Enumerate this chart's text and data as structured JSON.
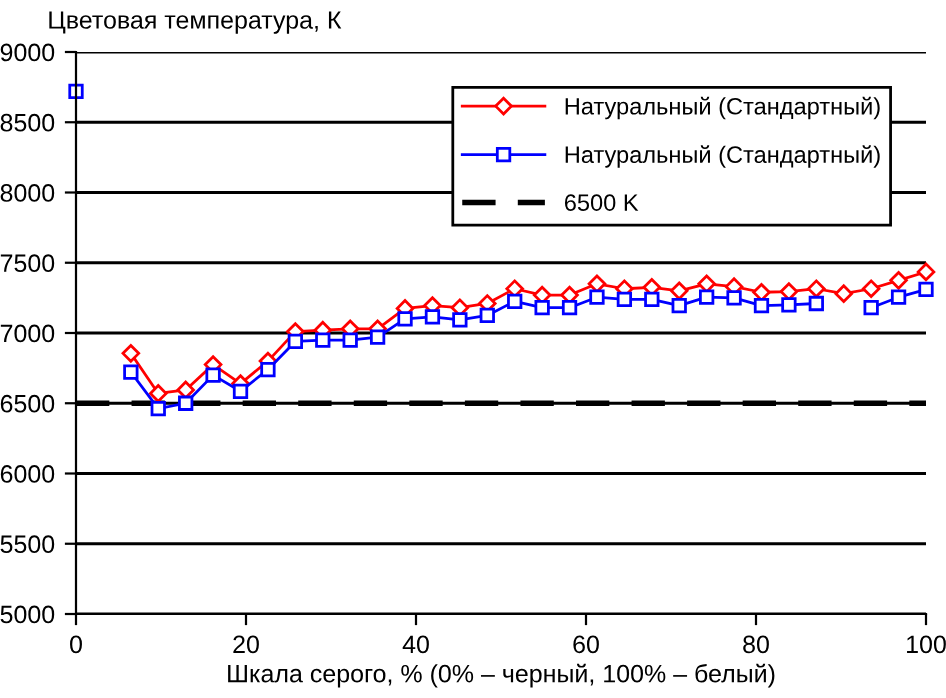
{
  "chart_data": {
    "type": "line",
    "ylabel": "Цветовая температура, К",
    "xlabel": "Шкала серого, % (0% – черный, 100% – белый)",
    "x": [
      0,
      3.226,
      6.452,
      9.677,
      12.903,
      16.129,
      19.355,
      22.581,
      25.806,
      29.032,
      32.258,
      35.484,
      38.71,
      41.935,
      45.161,
      48.387,
      51.613,
      54.839,
      58.065,
      61.29,
      64.516,
      67.742,
      70.968,
      74.194,
      77.419,
      80.645,
      83.871,
      87.097,
      90.323,
      93.548,
      96.774,
      100
    ],
    "series": [
      {
        "name": "Натуральный (Стандартный)",
        "color": "#ff0000",
        "marker": "diamond",
        "values": [
          null,
          null,
          6855,
          6570,
          6595,
          6775,
          6640,
          6800,
          7010,
          7020,
          7030,
          7030,
          7175,
          7195,
          7180,
          7210,
          7315,
          7270,
          7270,
          7350,
          7315,
          7325,
          7300,
          7350,
          7330,
          7290,
          7295,
          7315,
          7280,
          7315,
          7375,
          7435
        ]
      },
      {
        "name": "Натуральный (Стандартный)",
        "color": "#0000ff",
        "marker": "square",
        "values": [
          8720,
          null,
          6722,
          6462,
          6500,
          6700,
          6585,
          6740,
          6940,
          6950,
          6950,
          6970,
          7100,
          7115,
          7093,
          7125,
          7225,
          7180,
          7180,
          7255,
          7240,
          7240,
          7195,
          7255,
          7250,
          7195,
          7200,
          7210,
          null,
          7180,
          7255,
          7310
        ]
      }
    ],
    "ref_lines": [
      {
        "axis": "y",
        "value": 6500,
        "label": "6500 K",
        "color": "#000000",
        "line_style": "dashed"
      }
    ],
    "xlim": [
      0,
      100
    ],
    "ylim": [
      5000,
      9000
    ],
    "xticks": [
      0,
      20,
      40,
      60,
      80,
      100
    ],
    "yticks": [
      5000,
      5500,
      6000,
      6500,
      7000,
      7500,
      8000,
      8500,
      9000
    ],
    "grid": "y",
    "legend": "top right",
    "line_style": "solid"
  }
}
